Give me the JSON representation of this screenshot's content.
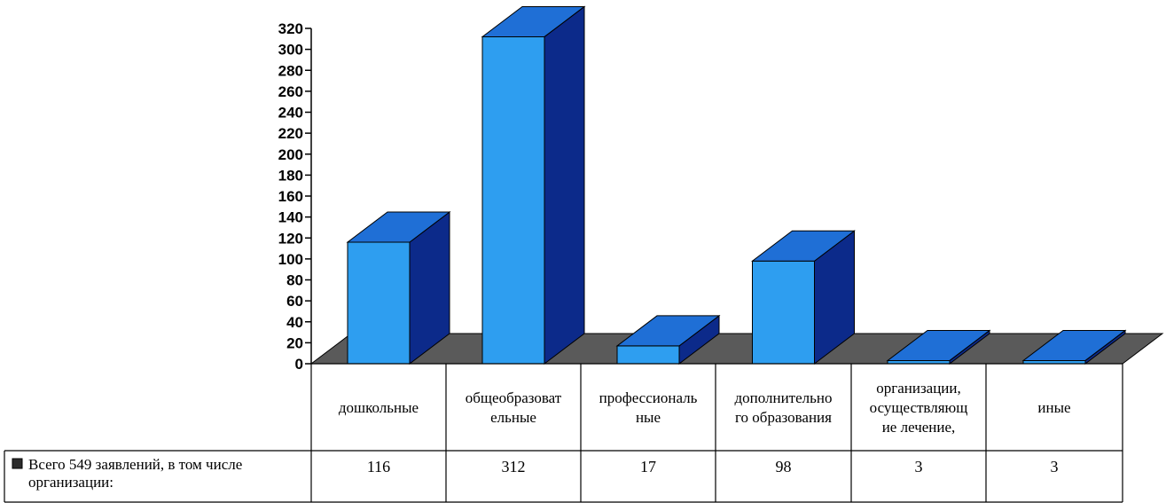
{
  "chart_data": {
    "type": "bar",
    "categories": [
      [
        "дошкольные"
      ],
      [
        "общеобразоват",
        "ельные"
      ],
      [
        "профессиональ",
        "ные"
      ],
      [
        "дополнительно",
        "го образования"
      ],
      [
        "организации,",
        "осуществляющ",
        "ие лечение,"
      ],
      [
        "иные"
      ]
    ],
    "series": [
      {
        "name": "Всего 549 заявлений, в том числе организации:",
        "name_lines": [
          "Всего 549 заявлений, в том числе",
          "организации:"
        ],
        "values": [
          116,
          312,
          17,
          98,
          3,
          3
        ],
        "value_labels": [
          "116",
          "312",
          "17",
          "98",
          "3",
          "3"
        ]
      }
    ],
    "y_ticks": [
      "0",
      "20",
      "40",
      "60",
      "80",
      "100",
      "120",
      "140",
      "160",
      "180",
      "200",
      "220",
      "240",
      "260",
      "280",
      "300",
      "320"
    ],
    "ylim": [
      0,
      320
    ],
    "style": "3d-column",
    "legend_position": "data-table",
    "colors": {
      "bar_front": "#2e9ef0",
      "bar_top": "#1f6fd6",
      "bar_side": "#0c2a8a",
      "floor": "#5a5a5a",
      "legend_key": "#2b2b2b"
    }
  }
}
